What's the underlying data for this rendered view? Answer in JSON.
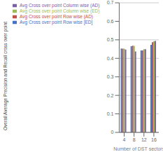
{
  "chart_data": {
    "type": "bar",
    "categories": [
      4,
      8,
      12,
      16
    ],
    "series": [
      {
        "name": "Avg Cross over point Row wise [ED]",
        "color": "#4472C4",
        "values": [
          0.453,
          0.465,
          0.443,
          0.473
        ]
      },
      {
        "name": "Avg Cross over point Row wise (AD)",
        "color": "#C0504D",
        "values": [
          0.452,
          0.468,
          0.443,
          0.487
        ]
      },
      {
        "name": "Avg Cross over point Column wise (ED)",
        "color": "#9BBB59",
        "values": [
          0.452,
          0.467,
          0.449,
          0.492
        ]
      },
      {
        "name": "Avg Cross over point Column wise (AD)",
        "color": "#7B60A2",
        "values": [
          0.447,
          0.437,
          0.449,
          0.494
        ]
      }
    ],
    "xlabel": "Number of DST sectors",
    "ylabel": "Overall Average Precision and Recall cross over point",
    "ylim": [
      0,
      0.7
    ],
    "yticks": [
      0,
      0.1,
      0.2,
      0.3,
      0.4,
      0.5,
      0.6,
      0.7
    ],
    "grid": true,
    "legend": "top left"
  }
}
